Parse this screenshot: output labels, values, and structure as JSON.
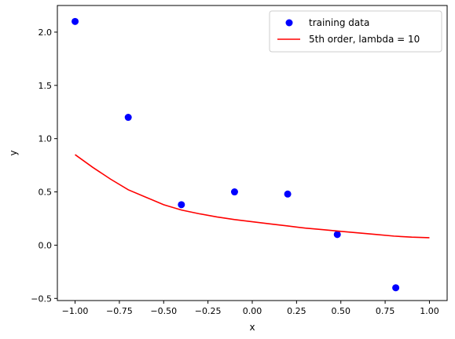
{
  "chart_data": {
    "type": "scatter",
    "title": "",
    "xlabel": "x",
    "ylabel": "y",
    "xlim": [
      -1.1,
      1.1
    ],
    "ylim": [
      -0.52,
      2.25
    ],
    "grid": false,
    "legend_position": "top-right",
    "xticks": [
      {
        "value": -1.0,
        "label": "−1.00"
      },
      {
        "value": -0.75,
        "label": "−0.75"
      },
      {
        "value": -0.5,
        "label": "−0.50"
      },
      {
        "value": -0.25,
        "label": "−0.25"
      },
      {
        "value": 0.0,
        "label": "0.00"
      },
      {
        "value": 0.25,
        "label": "0.25"
      },
      {
        "value": 0.5,
        "label": "0.50"
      },
      {
        "value": 0.75,
        "label": "0.75"
      },
      {
        "value": 1.0,
        "label": "1.00"
      }
    ],
    "yticks": [
      {
        "value": -0.5,
        "label": "−0.5"
      },
      {
        "value": 0.0,
        "label": "0.0"
      },
      {
        "value": 0.5,
        "label": "0.5"
      },
      {
        "value": 1.0,
        "label": "1.0"
      },
      {
        "value": 1.5,
        "label": "1.5"
      },
      {
        "value": 2.0,
        "label": "2.0"
      }
    ],
    "series": [
      {
        "name": "training data",
        "kind": "scatter",
        "color": "#0000ff",
        "x": [
          -1.0,
          -0.7,
          -0.4,
          -0.1,
          0.2,
          0.48,
          0.81
        ],
        "y": [
          2.1,
          1.2,
          0.38,
          0.5,
          0.48,
          0.1,
          -0.4
        ]
      },
      {
        "name": "5th order, lambda = 10",
        "kind": "line",
        "color": "#ff0000",
        "x": [
          -1.0,
          -0.9,
          -0.8,
          -0.7,
          -0.6,
          -0.5,
          -0.4,
          -0.3,
          -0.2,
          -0.1,
          0.0,
          0.1,
          0.2,
          0.3,
          0.4,
          0.5,
          0.6,
          0.7,
          0.8,
          0.9,
          1.0
        ],
        "y": [
          0.85,
          0.73,
          0.62,
          0.52,
          0.45,
          0.38,
          0.33,
          0.295,
          0.265,
          0.24,
          0.22,
          0.2,
          0.18,
          0.16,
          0.145,
          0.13,
          0.115,
          0.1,
          0.085,
          0.075,
          0.07
        ]
      }
    ]
  }
}
